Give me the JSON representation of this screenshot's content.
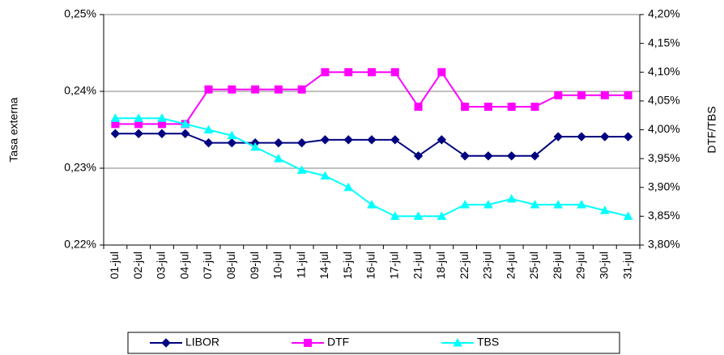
{
  "chart_data": {
    "type": "line",
    "categories": [
      "01-jul",
      "02-jul",
      "03-jul",
      "04-jul",
      "07-jul",
      "08-jul",
      "09-jul",
      "10-jul",
      "11-jul",
      "14-jul",
      "15-jul",
      "16-jul",
      "17-jul",
      "21-jul",
      "18-jul",
      "22-jul",
      "23-jul",
      "24-jul",
      "25-jul",
      "28-jul",
      "29-jul",
      "30-jul",
      "31-jul"
    ],
    "ylabel": "Tasa externa",
    "y2label": "DTF/TBS",
    "ylim": [
      0.22,
      0.25
    ],
    "yticks": [
      {
        "value": 0.22,
        "label": "0,22%"
      },
      {
        "value": 0.23,
        "label": "0,23%"
      },
      {
        "value": 0.24,
        "label": "0,24%"
      },
      {
        "value": 0.25,
        "label": "0,25%"
      }
    ],
    "y2lim": [
      3.8,
      4.2
    ],
    "y2ticks": [
      {
        "value": 3.8,
        "label": "3,80%"
      },
      {
        "value": 3.85,
        "label": "3,85%"
      },
      {
        "value": 3.9,
        "label": "3,90%"
      },
      {
        "value": 3.95,
        "label": "3,95%"
      },
      {
        "value": 4.0,
        "label": "4,00%"
      },
      {
        "value": 4.05,
        "label": "4,05%"
      },
      {
        "value": 4.1,
        "label": "4,10%"
      },
      {
        "value": 4.15,
        "label": "4,15%"
      },
      {
        "value": 4.2,
        "label": "4,20%"
      }
    ],
    "grid": true,
    "legend": "bottom",
    "series": [
      {
        "name": "LIBOR",
        "color": "#000080",
        "marker": "diamond",
        "axis": "y",
        "values": [
          0.2345,
          0.2345,
          0.2345,
          0.2345,
          0.2333,
          0.2333,
          0.2333,
          0.2333,
          0.2333,
          0.2337,
          0.2337,
          0.2337,
          0.2337,
          0.2316,
          0.2337,
          0.2316,
          0.2316,
          0.2316,
          0.2316,
          0.2341,
          0.2341,
          0.2341,
          0.2341
        ]
      },
      {
        "name": "DTF",
        "color": "#ff00ff",
        "marker": "square",
        "axis": "y2",
        "values": [
          4.01,
          4.01,
          4.01,
          4.01,
          4.07,
          4.07,
          4.07,
          4.07,
          4.07,
          4.1,
          4.1,
          4.1,
          4.1,
          4.04,
          4.1,
          4.04,
          4.04,
          4.04,
          4.04,
          4.06,
          4.06,
          4.06,
          4.06
        ]
      },
      {
        "name": "TBS",
        "color": "#00ffff",
        "marker": "triangle",
        "axis": "y2",
        "values": [
          4.02,
          4.02,
          4.02,
          4.01,
          4.0,
          3.99,
          3.97,
          3.95,
          3.93,
          3.92,
          3.9,
          3.87,
          3.85,
          3.85,
          3.85,
          3.87,
          3.87,
          3.88,
          3.87,
          3.87,
          3.87,
          3.86,
          3.85
        ]
      }
    ]
  }
}
